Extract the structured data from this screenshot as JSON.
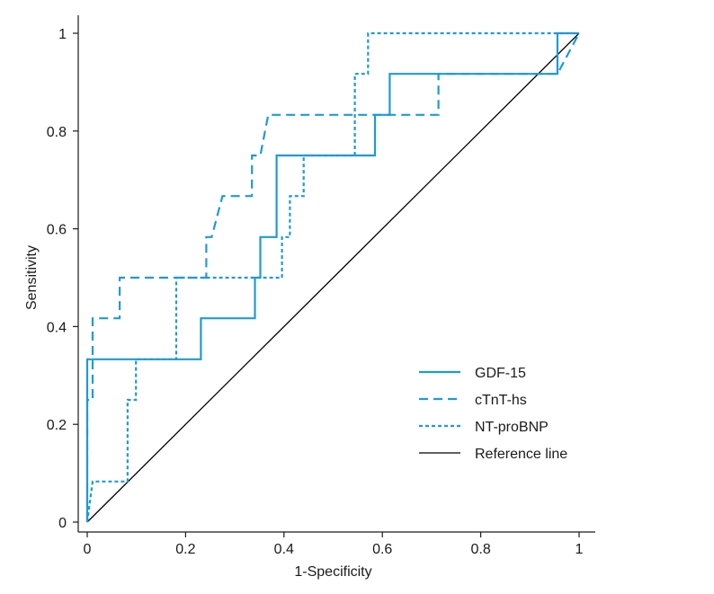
{
  "chart_data": {
    "type": "line",
    "title": "",
    "xlabel": "1-Specificity",
    "ylabel": "Sensitivity",
    "xlim": [
      0,
      1
    ],
    "ylim": [
      0,
      1
    ],
    "x_ticks": [
      "0",
      "0.2",
      "0.4",
      "0.6",
      "0.8",
      "1"
    ],
    "y_ticks": [
      "0",
      "0.2",
      "0.4",
      "0.6",
      "0.8",
      "1"
    ],
    "grid": false,
    "legend_position": "bottom-right",
    "series": [
      {
        "name": "GDF-15",
        "style": "solid",
        "color": "#1f9ad6",
        "points": [
          [
            0,
            0
          ],
          [
            0,
            0.333
          ],
          [
            0.231,
            0.333
          ],
          [
            0.231,
            0.417
          ],
          [
            0.341,
            0.417
          ],
          [
            0.341,
            0.5
          ],
          [
            0.352,
            0.5
          ],
          [
            0.352,
            0.583
          ],
          [
            0.385,
            0.583
          ],
          [
            0.385,
            0.75
          ],
          [
            0.585,
            0.75
          ],
          [
            0.585,
            0.833
          ],
          [
            0.615,
            0.833
          ],
          [
            0.615,
            0.917
          ],
          [
            0.956,
            0.917
          ],
          [
            0.956,
            1
          ],
          [
            1,
            1
          ]
        ]
      },
      {
        "name": "cTnT-hs",
        "style": "dashed",
        "color": "#1f9ad6",
        "points": [
          [
            0,
            0
          ],
          [
            0,
            0.25
          ],
          [
            0.011,
            0.25
          ],
          [
            0.011,
            0.417
          ],
          [
            0.066,
            0.417
          ],
          [
            0.066,
            0.5
          ],
          [
            0.242,
            0.5
          ],
          [
            0.242,
            0.583
          ],
          [
            0.253,
            0.583
          ],
          [
            0.275,
            0.667
          ],
          [
            0.335,
            0.667
          ],
          [
            0.335,
            0.75
          ],
          [
            0.352,
            0.75
          ],
          [
            0.368,
            0.833
          ],
          [
            0.714,
            0.833
          ],
          [
            0.714,
            0.917
          ],
          [
            0.956,
            0.917
          ],
          [
            1,
            1
          ]
        ]
      },
      {
        "name": "NT-proBNP",
        "style": "dotted",
        "color": "#1f9ad6",
        "points": [
          [
            0,
            0
          ],
          [
            0.011,
            0.083
          ],
          [
            0.082,
            0.083
          ],
          [
            0.082,
            0.25
          ],
          [
            0.099,
            0.25
          ],
          [
            0.099,
            0.333
          ],
          [
            0.181,
            0.333
          ],
          [
            0.181,
            0.5
          ],
          [
            0.396,
            0.5
          ],
          [
            0.396,
            0.583
          ],
          [
            0.412,
            0.583
          ],
          [
            0.412,
            0.667
          ],
          [
            0.44,
            0.667
          ],
          [
            0.44,
            0.75
          ],
          [
            0.544,
            0.75
          ],
          [
            0.544,
            0.917
          ],
          [
            0.571,
            0.917
          ],
          [
            0.571,
            1
          ],
          [
            1,
            1
          ]
        ]
      },
      {
        "name": "Reference line",
        "style": "solid",
        "color": "#000000",
        "points": [
          [
            0,
            0
          ],
          [
            1,
            1
          ]
        ]
      }
    ]
  }
}
